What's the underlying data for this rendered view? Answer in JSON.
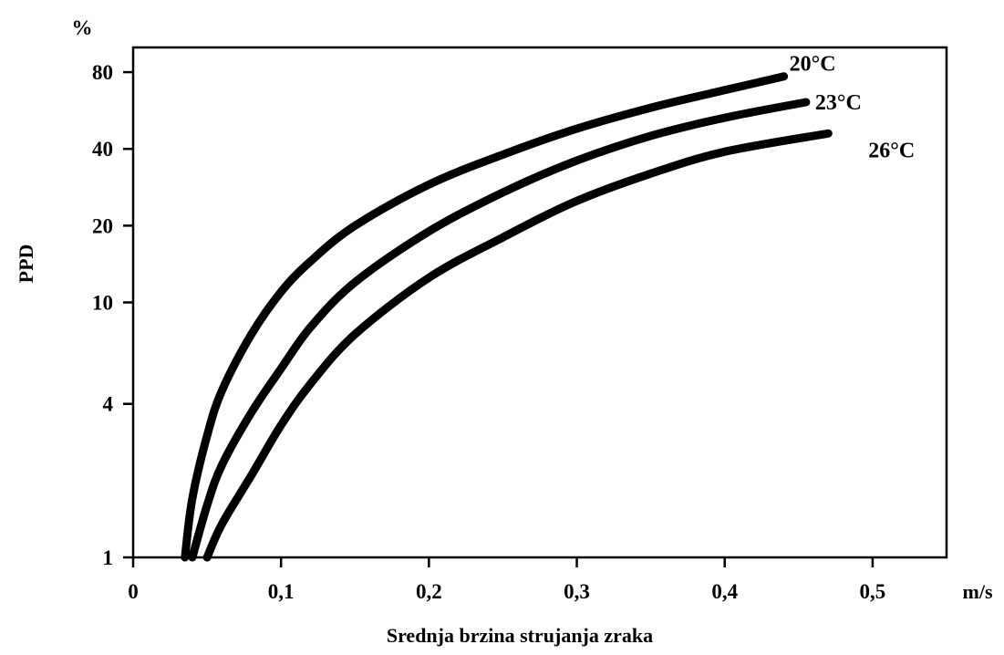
{
  "chart_data": {
    "type": "line",
    "title": "",
    "xlabel": "Srednja brzina strujanja zraka",
    "x_unit": "m/s",
    "ylabel": "PPD",
    "y_unit": "%",
    "yscale": "log",
    "xlim": [
      0,
      0.55
    ],
    "ylim": [
      1,
      100
    ],
    "x_ticks": [
      0,
      0.1,
      0.2,
      0.3,
      0.4,
      0.5
    ],
    "x_tick_labels": [
      "0",
      "0,1",
      "0,2",
      "0,3",
      "0,4",
      "0,5"
    ],
    "y_ticks": [
      1,
      4,
      10,
      20,
      40,
      80
    ],
    "y_tick_labels": [
      "1",
      "4",
      "10",
      "20",
      "40",
      "80"
    ],
    "grid": false,
    "legend": "none",
    "series": [
      {
        "name": "20°C",
        "x": [
          0.035,
          0.04,
          0.05,
          0.06,
          0.08,
          0.1,
          0.12,
          0.15,
          0.2,
          0.25,
          0.3,
          0.35,
          0.4,
          0.44
        ],
        "y": [
          1,
          1.7,
          3,
          4.5,
          7.5,
          11,
          14.5,
          20,
          29,
          38,
          48,
          58,
          68,
          77
        ]
      },
      {
        "name": "23°C",
        "x": [
          0.04,
          0.05,
          0.06,
          0.08,
          0.1,
          0.12,
          0.15,
          0.2,
          0.25,
          0.3,
          0.35,
          0.4,
          0.455
        ],
        "y": [
          1,
          1.6,
          2.3,
          3.7,
          5.5,
          8,
          12,
          19,
          27,
          36,
          45,
          53,
          61
        ]
      },
      {
        "name": "26°C",
        "x": [
          0.05,
          0.06,
          0.08,
          0.1,
          0.12,
          0.15,
          0.2,
          0.25,
          0.3,
          0.35,
          0.4,
          0.47
        ],
        "y": [
          1,
          1.35,
          2.1,
          3.3,
          4.8,
          7.5,
          12.5,
          18,
          25,
          32,
          39,
          46
        ]
      }
    ]
  }
}
